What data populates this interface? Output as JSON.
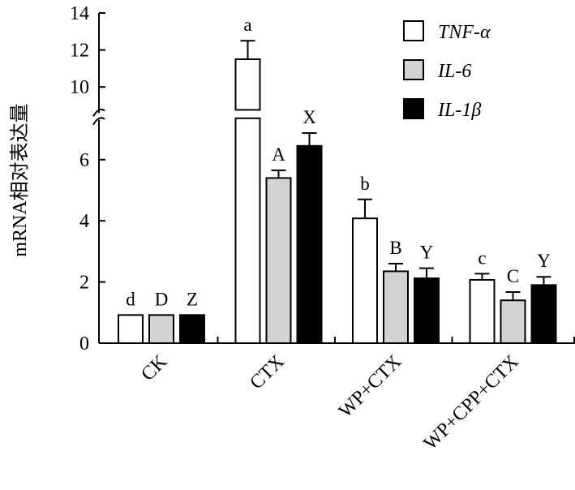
{
  "chart_data": {
    "type": "bar",
    "ylabel": "mRNA相对表达量",
    "xlabel": "",
    "ylim": [
      0,
      14
    ],
    "axis_break": [
      7.3,
      9.2
    ],
    "yticks": [
      "0",
      "2",
      "4",
      "6",
      "10",
      "12",
      "14"
    ],
    "categories": [
      "CK",
      "CTX",
      "WP+CTX",
      "WP+CPP+CTX"
    ],
    "series": [
      {
        "name": "TNF-α",
        "fill": "#ffffff",
        "values": [
          0.92,
          11.5,
          4.08,
          2.07
        ],
        "errors": [
          0.0,
          1.0,
          0.62,
          0.2
        ],
        "labels": [
          "d",
          "a",
          "b",
          "c"
        ]
      },
      {
        "name": "IL-6",
        "fill": "#d3d3d3",
        "values": [
          0.92,
          5.4,
          2.35,
          1.4
        ],
        "errors": [
          0.0,
          0.25,
          0.25,
          0.27
        ],
        "labels": [
          "D",
          "A",
          "B",
          "C"
        ]
      },
      {
        "name": "IL-1β",
        "fill": "#000000",
        "values": [
          0.92,
          6.45,
          2.12,
          1.9
        ],
        "errors": [
          0.0,
          0.42,
          0.33,
          0.27
        ],
        "labels": [
          "Z",
          "X",
          "Y",
          "Y"
        ]
      }
    ],
    "legend": {
      "position": "top-right"
    }
  }
}
